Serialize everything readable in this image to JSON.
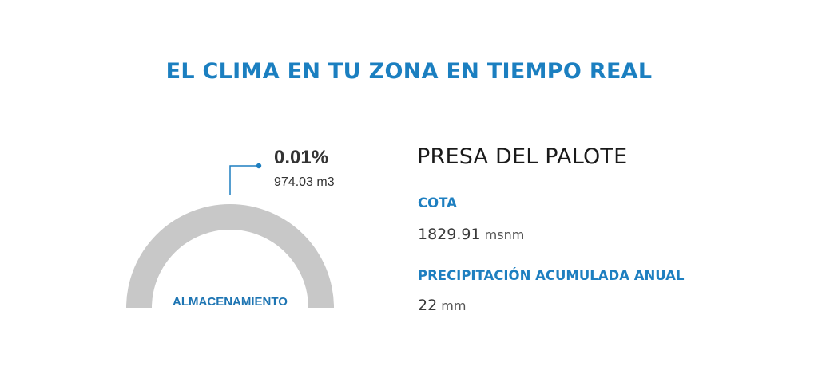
{
  "page": {
    "title": "EL CLIMA EN TU ZONA EN TIEMPO REAL"
  },
  "storage": {
    "percent": "0.01%",
    "fill_fraction": 0.0001,
    "volume": "974.03 m3",
    "label": "ALMACENAMIENTO",
    "track_color": "#c8c8c8",
    "fill_color": "#1e7fc0"
  },
  "dam": {
    "name": "PRESA DEL PALOTE",
    "cota": {
      "label": "COTA",
      "value": "1829.91",
      "unit": "msnm"
    },
    "precipitacion": {
      "label": "PRECIPITACIÓN ACUMULADA ANUAL",
      "value": "22",
      "unit": "mm"
    }
  },
  "colors": {
    "accent": "#1e7fc0",
    "text": "#333333"
  }
}
